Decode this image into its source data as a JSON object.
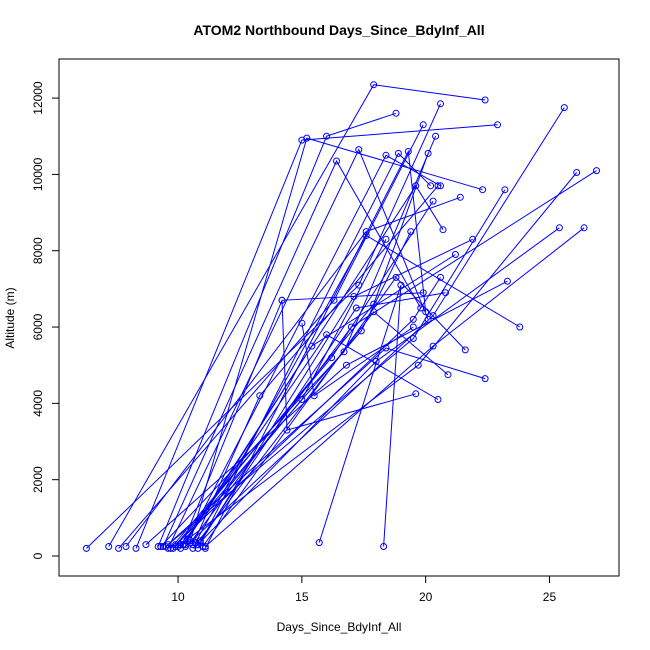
{
  "chart_data": {
    "type": "line",
    "title": "ATOM2 Northbound Days_Since_BdyInf_All",
    "xlabel": "Days_Since_BdyInf_All",
    "ylabel": "Altitude (m)",
    "xlim": [
      6,
      27
    ],
    "ylim": [
      0,
      12500
    ],
    "x_ticks": [
      10,
      15,
      20,
      25
    ],
    "y_ticks": [
      0,
      2000,
      4000,
      6000,
      8000,
      10000,
      12000
    ],
    "grid": false,
    "legend": "none",
    "color": "#0000ff",
    "series": [
      {
        "x": [
          6.3,
          17.3,
          20.6
        ],
        "y": [
          200,
          7100,
          11850
        ]
      },
      {
        "x": [
          7.2,
          17.9,
          22.4
        ],
        "y": [
          250,
          12350,
          11950
        ]
      },
      {
        "x": [
          7.6,
          16.3,
          19.9
        ],
        "y": [
          200,
          6700,
          11300
        ]
      },
      {
        "x": [
          7.9,
          17.6,
          21.4
        ],
        "y": [
          250,
          8500,
          9400
        ]
      },
      {
        "x": [
          8.3,
          15.0,
          22.9
        ],
        "y": [
          200,
          10900,
          11300
        ]
      },
      {
        "x": [
          8.7,
          16.8,
          23.3
        ],
        "y": [
          300,
          5000,
          7200
        ]
      },
      {
        "x": [
          9.2,
          16.0,
          18.8
        ],
        "y": [
          250,
          11000,
          11600
        ]
      },
      {
        "x": [
          9.4,
          16.4,
          19.8
        ],
        "y": [
          250,
          10350,
          6500
        ]
      },
      {
        "x": [
          9.6,
          17.3,
          20.1
        ],
        "y": [
          200,
          10650,
          6200
        ]
      },
      {
        "x": [
          9.9,
          17.4,
          19.4
        ],
        "y": [
          250,
          5900,
          8500
        ]
      },
      {
        "x": [
          10.1,
          14.2,
          19.9
        ],
        "y": [
          200,
          6700,
          6900
        ]
      },
      {
        "x": [
          10.3,
          18.4,
          20.6
        ],
        "y": [
          300,
          10500,
          9700
        ]
      },
      {
        "x": [
          10.5,
          15.2,
          22.3
        ],
        "y": [
          400,
          10950,
          9600
        ]
      },
      {
        "x": [
          10.8,
          18.9,
          20.2
        ],
        "y": [
          200,
          10550,
          9700
        ]
      },
      {
        "x": [
          11.1,
          19.3,
          20.0
        ],
        "y": [
          200,
          10600,
          6400
        ]
      },
      {
        "x": [
          9.3,
          16.7,
          20.4
        ],
        "y": [
          250,
          5350,
          11000
        ]
      },
      {
        "x": [
          9.8,
          17.9,
          20.1
        ],
        "y": [
          200,
          6600,
          10550
        ]
      },
      {
        "x": [
          10.2,
          19.6,
          20.7
        ],
        "y": [
          300,
          9700,
          8550
        ]
      },
      {
        "x": [
          10.6,
          13.3,
          20.5
        ],
        "y": [
          300,
          4200,
          9700
        ]
      },
      {
        "x": [
          10.4,
          15.4,
          21.2
        ],
        "y": [
          450,
          5500,
          7900
        ]
      },
      {
        "x": [
          9.5,
          18.4,
          22.4
        ],
        "y": [
          250,
          5450,
          4650
        ]
      },
      {
        "x": [
          9.7,
          16.2,
          20.3
        ],
        "y": [
          200,
          5200,
          9300
        ]
      },
      {
        "x": [
          10.9,
          17.1,
          21.9
        ],
        "y": [
          350,
          6800,
          8300
        ]
      },
      {
        "x": [
          11.0,
          18.8,
          21.6
        ],
        "y": [
          250,
          7300,
          5400
        ]
      },
      {
        "x": [
          9.9,
          19.5,
          20.6
        ],
        "y": [
          300,
          6200,
          7300
        ]
      },
      {
        "x": [
          10.1,
          15.0,
          18.4
        ],
        "y": [
          300,
          4100,
          8300
        ]
      },
      {
        "x": [
          10.7,
          17.6,
          23.8
        ],
        "y": [
          350,
          8400,
          6000
        ]
      },
      {
        "x": [
          10.3,
          20.3,
          25.6
        ],
        "y": [
          250,
          6300,
          11750
        ]
      },
      {
        "x": [
          10.0,
          19.7,
          26.1
        ],
        "y": [
          250,
          5000,
          10050
        ]
      },
      {
        "x": [
          10.5,
          17.0,
          26.9
        ],
        "y": [
          350,
          6000,
          10100
        ]
      },
      {
        "x": [
          10.8,
          18.0,
          25.4
        ],
        "y": [
          300,
          5100,
          8600
        ]
      },
      {
        "x": [
          11.1,
          20.3,
          26.4
        ],
        "y": [
          250,
          5500,
          8600
        ]
      },
      {
        "x": [
          9.6,
          19.5,
          23.2
        ],
        "y": [
          300,
          5700,
          9600
        ]
      },
      {
        "x": [
          10.2,
          16.0,
          20.5
        ],
        "y": [
          300,
          5800,
          4100
        ]
      },
      {
        "x": [
          10.6,
          17.9,
          20.9
        ],
        "y": [
          200,
          6400,
          4750
        ]
      },
      {
        "x": [
          15.7,
          19.0,
          18.3
        ],
        "y": [
          350,
          7100,
          250
        ]
      },
      {
        "x": [
          14.2,
          14.4,
          19.6
        ],
        "y": [
          6700,
          3300,
          4250
        ]
      },
      {
        "x": [
          15.0,
          15.5,
          19.5
        ],
        "y": [
          6100,
          4200,
          6000
        ]
      },
      {
        "x": [
          10.9,
          17.2,
          20.8
        ],
        "y": [
          400,
          6500,
          6900
        ]
      }
    ]
  }
}
